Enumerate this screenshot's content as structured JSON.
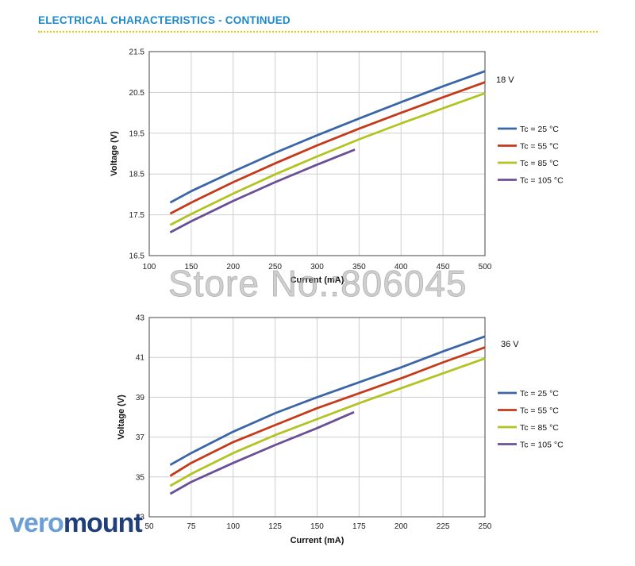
{
  "header": {
    "title": "ELECTRICAL CHARACTERISTICS - CONTINUED"
  },
  "watermark": "Store No.:806045",
  "logo": {
    "part1": "vero",
    "part2": "mount"
  },
  "colors": {
    "accent": "#1e88c8",
    "rule": "#e8c400",
    "tc25": "#3a66a8",
    "tc55": "#c43a1a",
    "tc85": "#b3c322",
    "tc105": "#6b4f96"
  },
  "chart_data": [
    {
      "type": "line",
      "title": "",
      "xlabel": "Current (mA)",
      "ylabel": "Voltage (V)",
      "xlim": [
        100,
        500
      ],
      "ylim": [
        16.5,
        21.5
      ],
      "xticks": [
        "100",
        "150",
        "200",
        "250",
        "300",
        "350",
        "400",
        "450",
        "500"
      ],
      "yticks": [
        "16.5",
        "17.5",
        "18.5",
        "19.5",
        "20.5",
        "21.5"
      ],
      "grid": true,
      "annotation": "18 V",
      "legend_position": "right",
      "series": [
        {
          "name": "Tc = 25 °C",
          "color": "#3a66a8",
          "points": [
            [
              125,
              17.8
            ],
            [
              150,
              18.08
            ],
            [
              200,
              18.56
            ],
            [
              250,
              19.02
            ],
            [
              300,
              19.45
            ],
            [
              350,
              19.86
            ],
            [
              400,
              20.26
            ],
            [
              450,
              20.65
            ],
            [
              500,
              21.02
            ]
          ]
        },
        {
          "name": "Tc = 55 °C",
          "color": "#c43a1a",
          "points": [
            [
              125,
              17.53
            ],
            [
              150,
              17.8
            ],
            [
              200,
              18.3
            ],
            [
              250,
              18.76
            ],
            [
              300,
              19.2
            ],
            [
              350,
              19.61
            ],
            [
              400,
              20.0
            ],
            [
              450,
              20.38
            ],
            [
              500,
              20.75
            ]
          ]
        },
        {
          "name": "Tc = 85 °C",
          "color": "#b3c322",
          "points": [
            [
              125,
              17.25
            ],
            [
              150,
              17.52
            ],
            [
              200,
              18.02
            ],
            [
              250,
              18.49
            ],
            [
              300,
              18.93
            ],
            [
              350,
              19.35
            ],
            [
              400,
              19.74
            ],
            [
              450,
              20.11
            ],
            [
              500,
              20.48
            ]
          ]
        },
        {
          "name": "Tc = 105 °C",
          "color": "#6b4f96",
          "points": [
            [
              125,
              17.07
            ],
            [
              150,
              17.34
            ],
            [
              200,
              17.84
            ],
            [
              250,
              18.3
            ],
            [
              300,
              18.73
            ],
            [
              345,
              19.1
            ]
          ]
        }
      ]
    },
    {
      "type": "line",
      "title": "",
      "xlabel": "Current (mA)",
      "ylabel": "Voltage (V)",
      "xlim": [
        50,
        250
      ],
      "ylim": [
        33,
        43
      ],
      "xticks": [
        "50",
        "75",
        "100",
        "125",
        "150",
        "175",
        "200",
        "225",
        "250"
      ],
      "yticks": [
        "33",
        "35",
        "37",
        "39",
        "41",
        "43"
      ],
      "grid": true,
      "annotation": "36 V",
      "legend_position": "right",
      "series": [
        {
          "name": "Tc = 25 °C",
          "color": "#3a66a8",
          "points": [
            [
              62.5,
              35.6
            ],
            [
              75,
              36.2
            ],
            [
              100,
              37.27
            ],
            [
              125,
              38.2
            ],
            [
              150,
              39.0
            ],
            [
              175,
              39.75
            ],
            [
              200,
              40.5
            ],
            [
              225,
              41.3
            ],
            [
              250,
              42.05
            ]
          ]
        },
        {
          "name": "Tc = 55 °C",
          "color": "#c43a1a",
          "points": [
            [
              62.5,
              35.05
            ],
            [
              75,
              35.7
            ],
            [
              100,
              36.75
            ],
            [
              125,
              37.6
            ],
            [
              150,
              38.45
            ],
            [
              175,
              39.2
            ],
            [
              200,
              39.95
            ],
            [
              225,
              40.75
            ],
            [
              250,
              41.5
            ]
          ]
        },
        {
          "name": "Tc = 85 °C",
          "color": "#b3c322",
          "points": [
            [
              62.5,
              34.55
            ],
            [
              75,
              35.15
            ],
            [
              100,
              36.2
            ],
            [
              125,
              37.1
            ],
            [
              150,
              37.9
            ],
            [
              175,
              38.7
            ],
            [
              200,
              39.45
            ],
            [
              225,
              40.2
            ],
            [
              250,
              40.95
            ]
          ]
        },
        {
          "name": "Tc = 105 °C",
          "color": "#6b4f96",
          "points": [
            [
              62.5,
              34.15
            ],
            [
              75,
              34.75
            ],
            [
              100,
              35.7
            ],
            [
              125,
              36.6
            ],
            [
              150,
              37.45
            ],
            [
              172,
              38.25
            ]
          ]
        }
      ]
    }
  ]
}
